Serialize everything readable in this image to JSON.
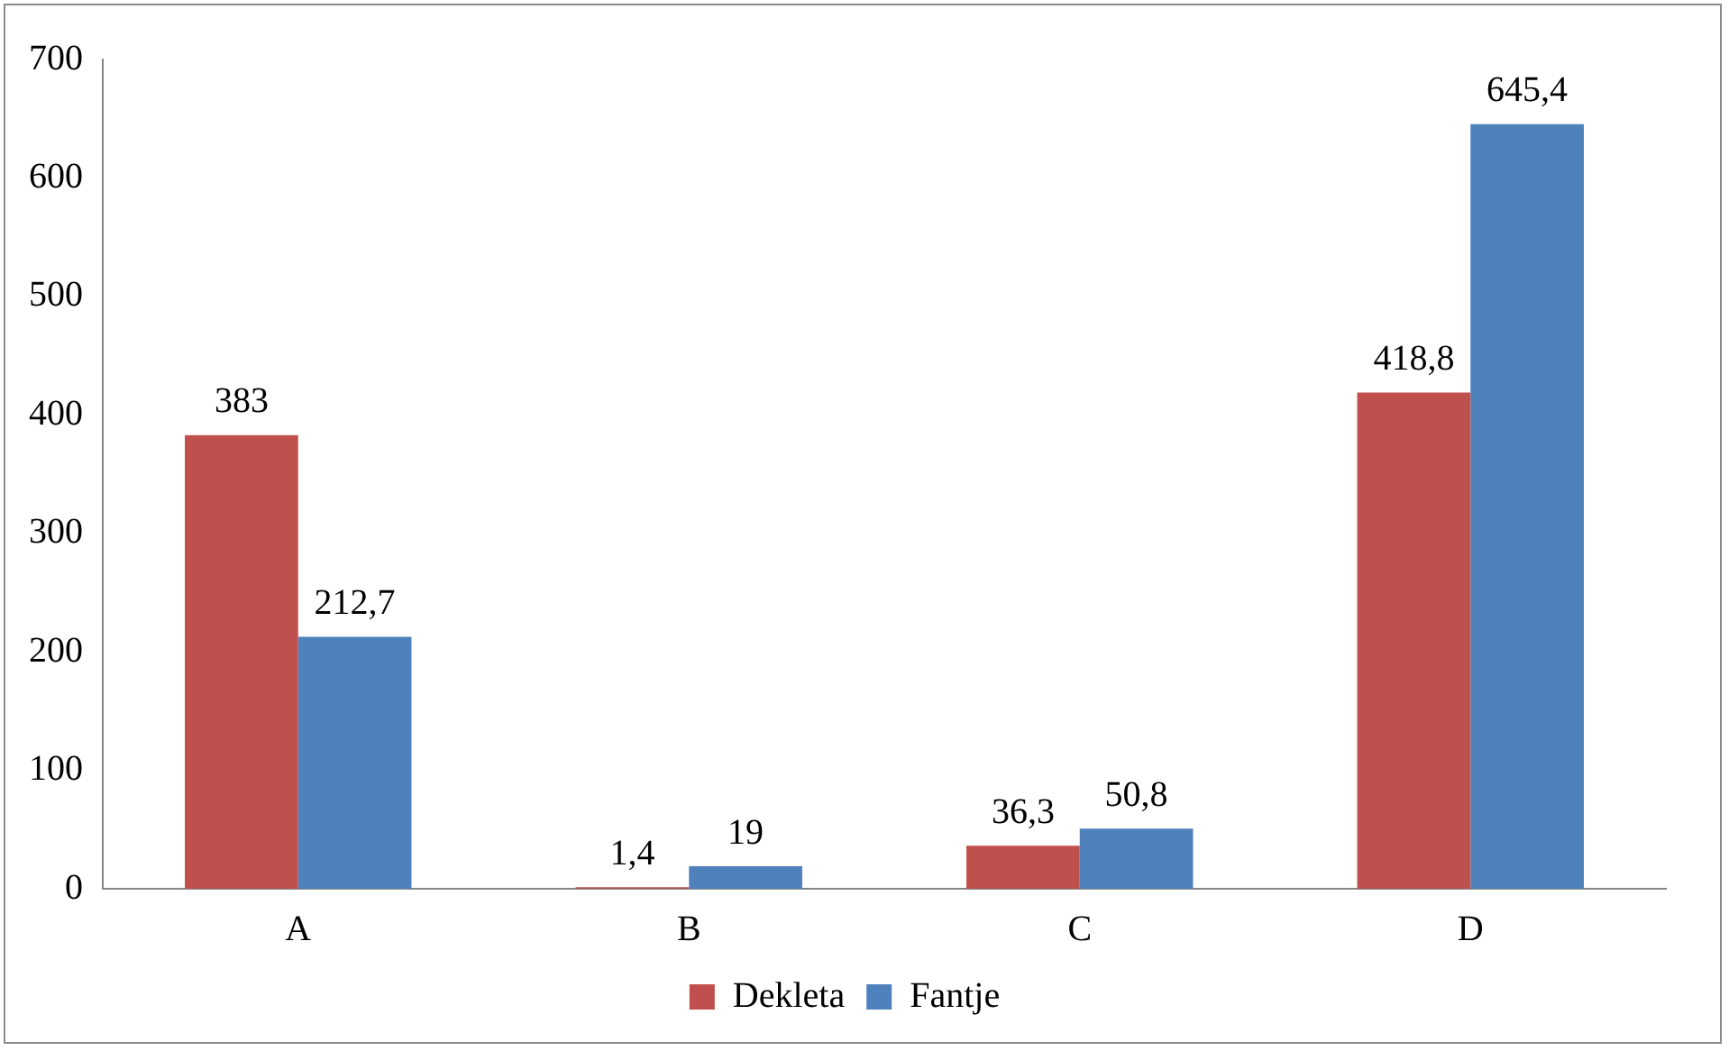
{
  "chart_data": {
    "type": "bar",
    "categories": [
      "A",
      "B",
      "C",
      "D"
    ],
    "series": [
      {
        "name": "Dekleta",
        "color": "#c0504d",
        "values": [
          383,
          1.4,
          36.3,
          418.8
        ],
        "value_labels": [
          "383",
          "1,4",
          "36,3",
          "418,8"
        ]
      },
      {
        "name": "Fantje",
        "color": "#4f81bd",
        "values": [
          212.7,
          19,
          50.8,
          645.4
        ],
        "value_labels": [
          "212,7",
          "19",
          "50,8",
          "645,4"
        ]
      }
    ],
    "ylim": [
      0,
      700
    ],
    "yticks": [
      0,
      100,
      200,
      300,
      400,
      500,
      600,
      700
    ],
    "grid": false,
    "legend": "bottom"
  }
}
